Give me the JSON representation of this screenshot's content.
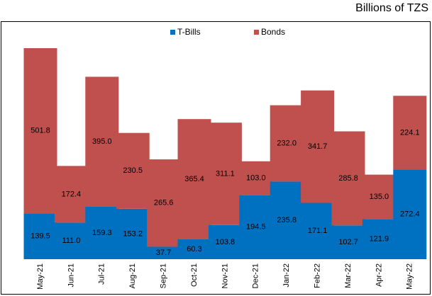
{
  "chart_data": {
    "type": "stacked-bar",
    "subtitle": "Billions of TZS",
    "categories": [
      "May-21",
      "Jun-21",
      "Jul-21",
      "Aug-21",
      "Sep-21",
      "Oct-21",
      "Nov-21",
      "Dec-21",
      "Jan-22",
      "Feb-22",
      "Mar-22",
      "Apr-22",
      "May-22"
    ],
    "series": [
      {
        "name": "T-Bills",
        "color": "#0070c0",
        "values": [
          139.5,
          111.0,
          159.3,
          153.2,
          37.7,
          60.3,
          103.8,
          194.5,
          235.8,
          171.1,
          102.7,
          121.9,
          272.4
        ],
        "value_labels": [
          "139.5",
          "111.0",
          "159.3",
          "153.2",
          "37.7",
          "60.3",
          "103.8",
          "194.5",
          "235.8",
          "171.1",
          "102.7",
          "121.9",
          "272.4"
        ]
      },
      {
        "name": "Bonds",
        "color": "#c0504d",
        "values": [
          501.8,
          172.4,
          395.0,
          230.5,
          265.6,
          365.4,
          311.1,
          103.0,
          232.0,
          341.7,
          285.8,
          135.0,
          224.1
        ],
        "value_labels": [
          "501.8",
          "172.4",
          "395.0",
          "230.5",
          "265.6",
          "365.4",
          "311.1",
          "103.0",
          "232.0",
          "341.7",
          "285.8",
          "135.0",
          "224.1"
        ]
      }
    ],
    "legend": "top"
  }
}
